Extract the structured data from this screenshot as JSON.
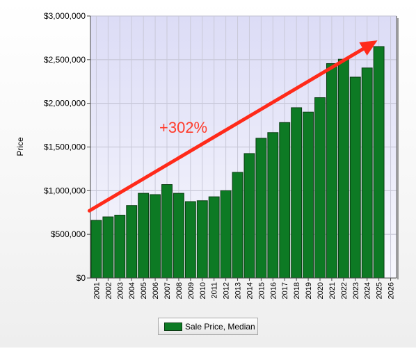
{
  "chart_data": {
    "type": "bar",
    "title": "",
    "xlabel": "",
    "ylabel": "Price",
    "categories": [
      "2001",
      "2002",
      "2003",
      "2004",
      "2005",
      "2006",
      "2007",
      "2008",
      "2009",
      "2010",
      "2011",
      "2012",
      "2013",
      "2014",
      "2015",
      "2016",
      "2017",
      "2018",
      "2019",
      "2020",
      "2021",
      "2022",
      "2023",
      "2024",
      "2025",
      "2026"
    ],
    "series": [
      {
        "name": "Sale Price, Median",
        "values": [
          660000,
          700000,
          720000,
          830000,
          970000,
          955000,
          1070000,
          970000,
          875000,
          885000,
          930000,
          1000000,
          1210000,
          1425000,
          1600000,
          1665000,
          1780000,
          1950000,
          1900000,
          2065000,
          2455000,
          2505000,
          2300000,
          2405000,
          2650000,
          null
        ]
      }
    ],
    "ylim": [
      0,
      3000000
    ],
    "yticks": [
      0,
      500000,
      1000000,
      1500000,
      2000000,
      2500000,
      3000000
    ],
    "ytick_labels": [
      "$0",
      "$500,000",
      "$1,000,000",
      "$1,500,000",
      "$2,000,000",
      "$2,500,000",
      "$3,000,000"
    ],
    "grid": true,
    "legend_position": "bottom-center",
    "annotation": {
      "text": "+302%",
      "color": "#ff3b2b",
      "arrow_from": {
        "x": "2001",
        "y": 770000
      },
      "arrow_to": {
        "x": "2025",
        "y": 2720000
      }
    },
    "colors": {
      "bar_fill": "#0d7a24",
      "bar_stroke": "#0a3d12",
      "arrow": "#ff2a1a",
      "plot_background_top": "#dcdcf6",
      "plot_background_bottom": "#f7f7fd"
    }
  }
}
